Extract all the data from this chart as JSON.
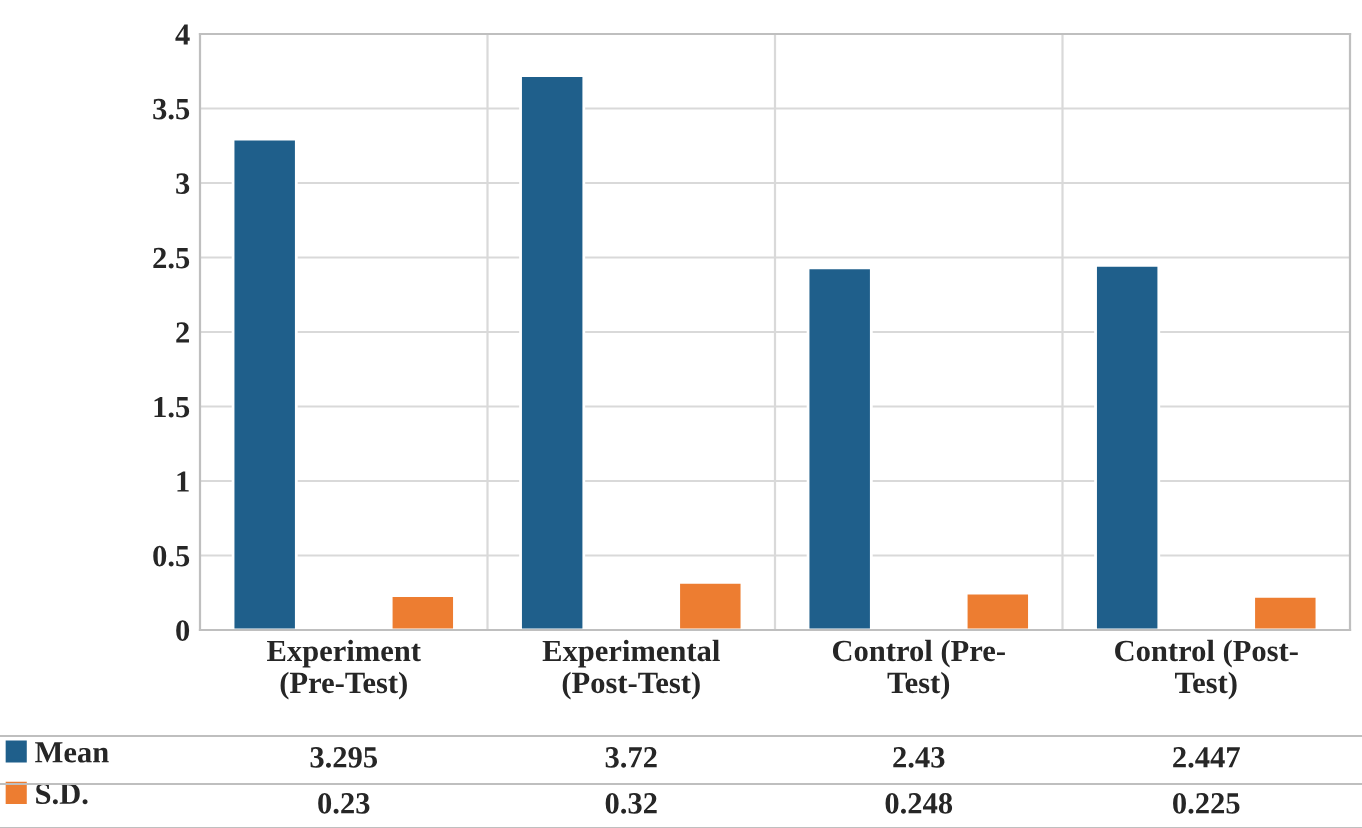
{
  "chart_data": {
    "type": "bar",
    "categories": [
      "Experiment\n(Pre-Test)",
      "Experimental\n(Post-Test)",
      "Control (Pre-\nTest)",
      "Control (Post-\nTest)"
    ],
    "series": [
      {
        "name": "Mean",
        "color": "#1f5f8b",
        "values": [
          3.295,
          3.72,
          2.43,
          2.447
        ]
      },
      {
        "name": "S.D.",
        "color": "#ed7d31",
        "values": [
          0.23,
          0.32,
          0.248,
          0.225
        ]
      }
    ],
    "ylim": [
      0,
      4
    ],
    "yticks": [
      0,
      0.5,
      1,
      1.5,
      2,
      2.5,
      3,
      3.5,
      4
    ],
    "grid": "y",
    "legend": "bottom left",
    "data_labels": true
  }
}
